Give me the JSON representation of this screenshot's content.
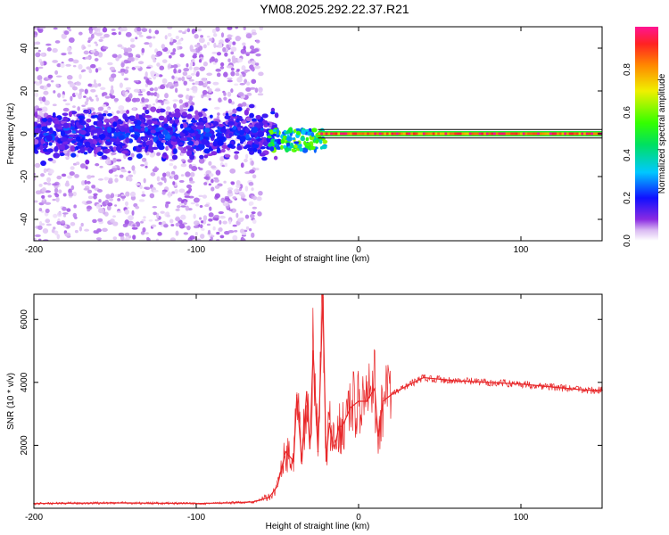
{
  "title": "YM08.2025.292.22.37.R21",
  "colors": {
    "snr_line": "#e8282a",
    "frame": "#000000"
  },
  "chart_data": [
    {
      "type": "heatmap",
      "xlabel": "Height of straight line (km)",
      "ylabel": "Frequency (Hz)",
      "xlim": [
        -200,
        150
      ],
      "ylim": [
        -50,
        50
      ],
      "xticks": [
        "-200",
        "-100",
        "0",
        "100"
      ],
      "yticks": [
        "-40",
        "-20",
        "0",
        "20",
        "40"
      ],
      "colorbar": {
        "label": "Normalized spectral amplitude",
        "range": [
          0,
          1
        ],
        "ticks": [
          "0.0",
          "0.2",
          "0.4",
          "0.6",
          "0.8"
        ]
      },
      "grid": false
    },
    {
      "type": "line",
      "xlabel": "Height of straight line (km)",
      "ylabel": "SNR (10 * v/v)",
      "xlim": [
        -200,
        150
      ],
      "ylim": [
        0,
        6800
      ],
      "xticks": [
        "-200",
        "-100",
        "0",
        "100"
      ],
      "yticks": [
        "2000",
        "4000",
        "6000"
      ],
      "grid": false,
      "series": [
        {
          "x": [
            -200,
            -150,
            -100,
            -80,
            -65,
            -55,
            -50,
            -45,
            -40,
            -38,
            -35,
            -32,
            -30,
            -28,
            -25,
            -22,
            -20,
            -18,
            -15,
            -12,
            -10,
            -5,
            0,
            5,
            10,
            12,
            15,
            20,
            30,
            40,
            50,
            60,
            80,
            100,
            120,
            140,
            150
          ],
          "y": [
            150,
            170,
            150,
            170,
            200,
            350,
            700,
            1800,
            1500,
            3600,
            1500,
            3700,
            1900,
            5000,
            1800,
            6700,
            1500,
            2700,
            1900,
            2600,
            2600,
            3200,
            3400,
            3400,
            3800,
            2300,
            3400,
            3600,
            3900,
            4150,
            4100,
            4050,
            4000,
            3950,
            3850,
            3750,
            3750
          ]
        }
      ]
    }
  ]
}
